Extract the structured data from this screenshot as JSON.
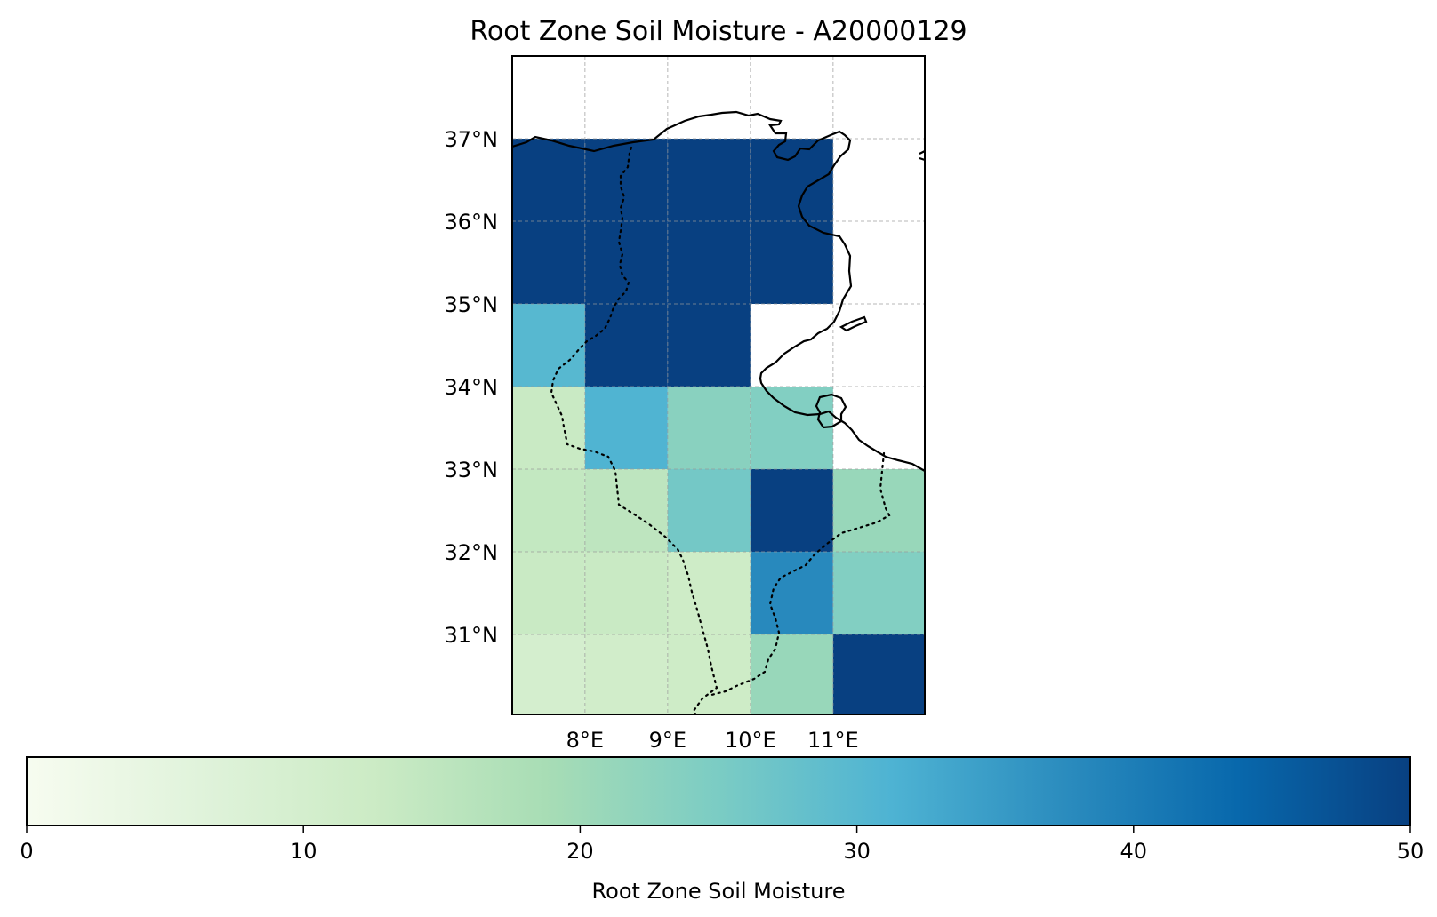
{
  "chart_data": {
    "type": "heatmap",
    "title": "Root Zone Soil Moisture - A20000129",
    "x_ticks": [
      {
        "value": 8,
        "label": "8°E"
      },
      {
        "value": 9,
        "label": "9°E"
      },
      {
        "value": 10,
        "label": "10°E"
      },
      {
        "value": 11,
        "label": "11°E"
      }
    ],
    "y_ticks": [
      {
        "value": 31,
        "label": "31°N"
      },
      {
        "value": 32,
        "label": "32°N"
      },
      {
        "value": 33,
        "label": "33°N"
      },
      {
        "value": 34,
        "label": "34°N"
      },
      {
        "value": 35,
        "label": "35°N"
      },
      {
        "value": 36,
        "label": "36°N"
      },
      {
        "value": 37,
        "label": "37°N"
      }
    ],
    "xlim": [
      7.12,
      12.12
    ],
    "ylim": [
      30,
      38
    ],
    "grid": true,
    "colormap": "GnBu",
    "colorbar": {
      "label": "Root Zone Soil Moisture",
      "range": [
        0,
        50
      ],
      "ticks": [
        0,
        10,
        20,
        30,
        40,
        50
      ],
      "placement": "bottom"
    },
    "cells": [
      {
        "lon0": 7,
        "lon1": 8,
        "lat0": 36,
        "lat1": 37,
        "value": 50
      },
      {
        "lon0": 8,
        "lon1": 9,
        "lat0": 36,
        "lat1": 37,
        "value": 50
      },
      {
        "lon0": 9,
        "lon1": 10,
        "lat0": 36,
        "lat1": 37,
        "value": 50
      },
      {
        "lon0": 10,
        "lon1": 11,
        "lat0": 36,
        "lat1": 37,
        "value": 50
      },
      {
        "lon0": 7,
        "lon1": 8,
        "lat0": 35,
        "lat1": 36,
        "value": 50
      },
      {
        "lon0": 8,
        "lon1": 9,
        "lat0": 35,
        "lat1": 36,
        "value": 50
      },
      {
        "lon0": 9,
        "lon1": 10,
        "lat0": 35,
        "lat1": 36,
        "value": 50
      },
      {
        "lon0": 10,
        "lon1": 11,
        "lat0": 35,
        "lat1": 36,
        "value": 50
      },
      {
        "lon0": 7,
        "lon1": 8,
        "lat0": 34,
        "lat1": 35,
        "value": 30
      },
      {
        "lon0": 8,
        "lon1": 9,
        "lat0": 34,
        "lat1": 35,
        "value": 50
      },
      {
        "lon0": 9,
        "lon1": 10,
        "lat0": 34,
        "lat1": 35,
        "value": 50
      },
      {
        "lon0": 7,
        "lon1": 8,
        "lat0": 33,
        "lat1": 34,
        "value": 13
      },
      {
        "lon0": 8,
        "lon1": 9,
        "lat0": 33,
        "lat1": 34,
        "value": 31
      },
      {
        "lon0": 9,
        "lon1": 10,
        "lat0": 33,
        "lat1": 34,
        "value": 23
      },
      {
        "lon0": 10,
        "lon1": 11,
        "lat0": 33,
        "lat1": 34,
        "value": 24
      },
      {
        "lon0": 7,
        "lon1": 8,
        "lat0": 32,
        "lat1": 33,
        "value": 14
      },
      {
        "lon0": 8,
        "lon1": 9,
        "lat0": 32,
        "lat1": 33,
        "value": 15
      },
      {
        "lon0": 9,
        "lon1": 10,
        "lat0": 32,
        "lat1": 33,
        "value": 26
      },
      {
        "lon0": 10,
        "lon1": 11,
        "lat0": 32,
        "lat1": 33,
        "value": 50
      },
      {
        "lon0": 11,
        "lon1": 12.12,
        "lat0": 32,
        "lat1": 33,
        "value": 21
      },
      {
        "lon0": 7,
        "lon1": 8,
        "lat0": 31,
        "lat1": 32,
        "value": 13
      },
      {
        "lon0": 8,
        "lon1": 9,
        "lat0": 31,
        "lat1": 32,
        "value": 13
      },
      {
        "lon0": 9,
        "lon1": 10,
        "lat0": 31,
        "lat1": 32,
        "value": 12
      },
      {
        "lon0": 10,
        "lon1": 11,
        "lat0": 31,
        "lat1": 32,
        "value": 38
      },
      {
        "lon0": 11,
        "lon1": 12.12,
        "lat0": 31,
        "lat1": 32,
        "value": 24
      },
      {
        "lon0": 7,
        "lon1": 8,
        "lat0": 30,
        "lat1": 31,
        "value": 10
      },
      {
        "lon0": 8,
        "lon1": 9,
        "lat0": 30,
        "lat1": 31,
        "value": 11
      },
      {
        "lon0": 9,
        "lon1": 10,
        "lat0": 30,
        "lat1": 31,
        "value": 12
      },
      {
        "lon0": 10,
        "lon1": 11,
        "lat0": 30,
        "lat1": 31,
        "value": 21
      },
      {
        "lon0": 11,
        "lon1": 12.12,
        "lat0": 30,
        "lat1": 31,
        "value": 50
      }
    ]
  }
}
